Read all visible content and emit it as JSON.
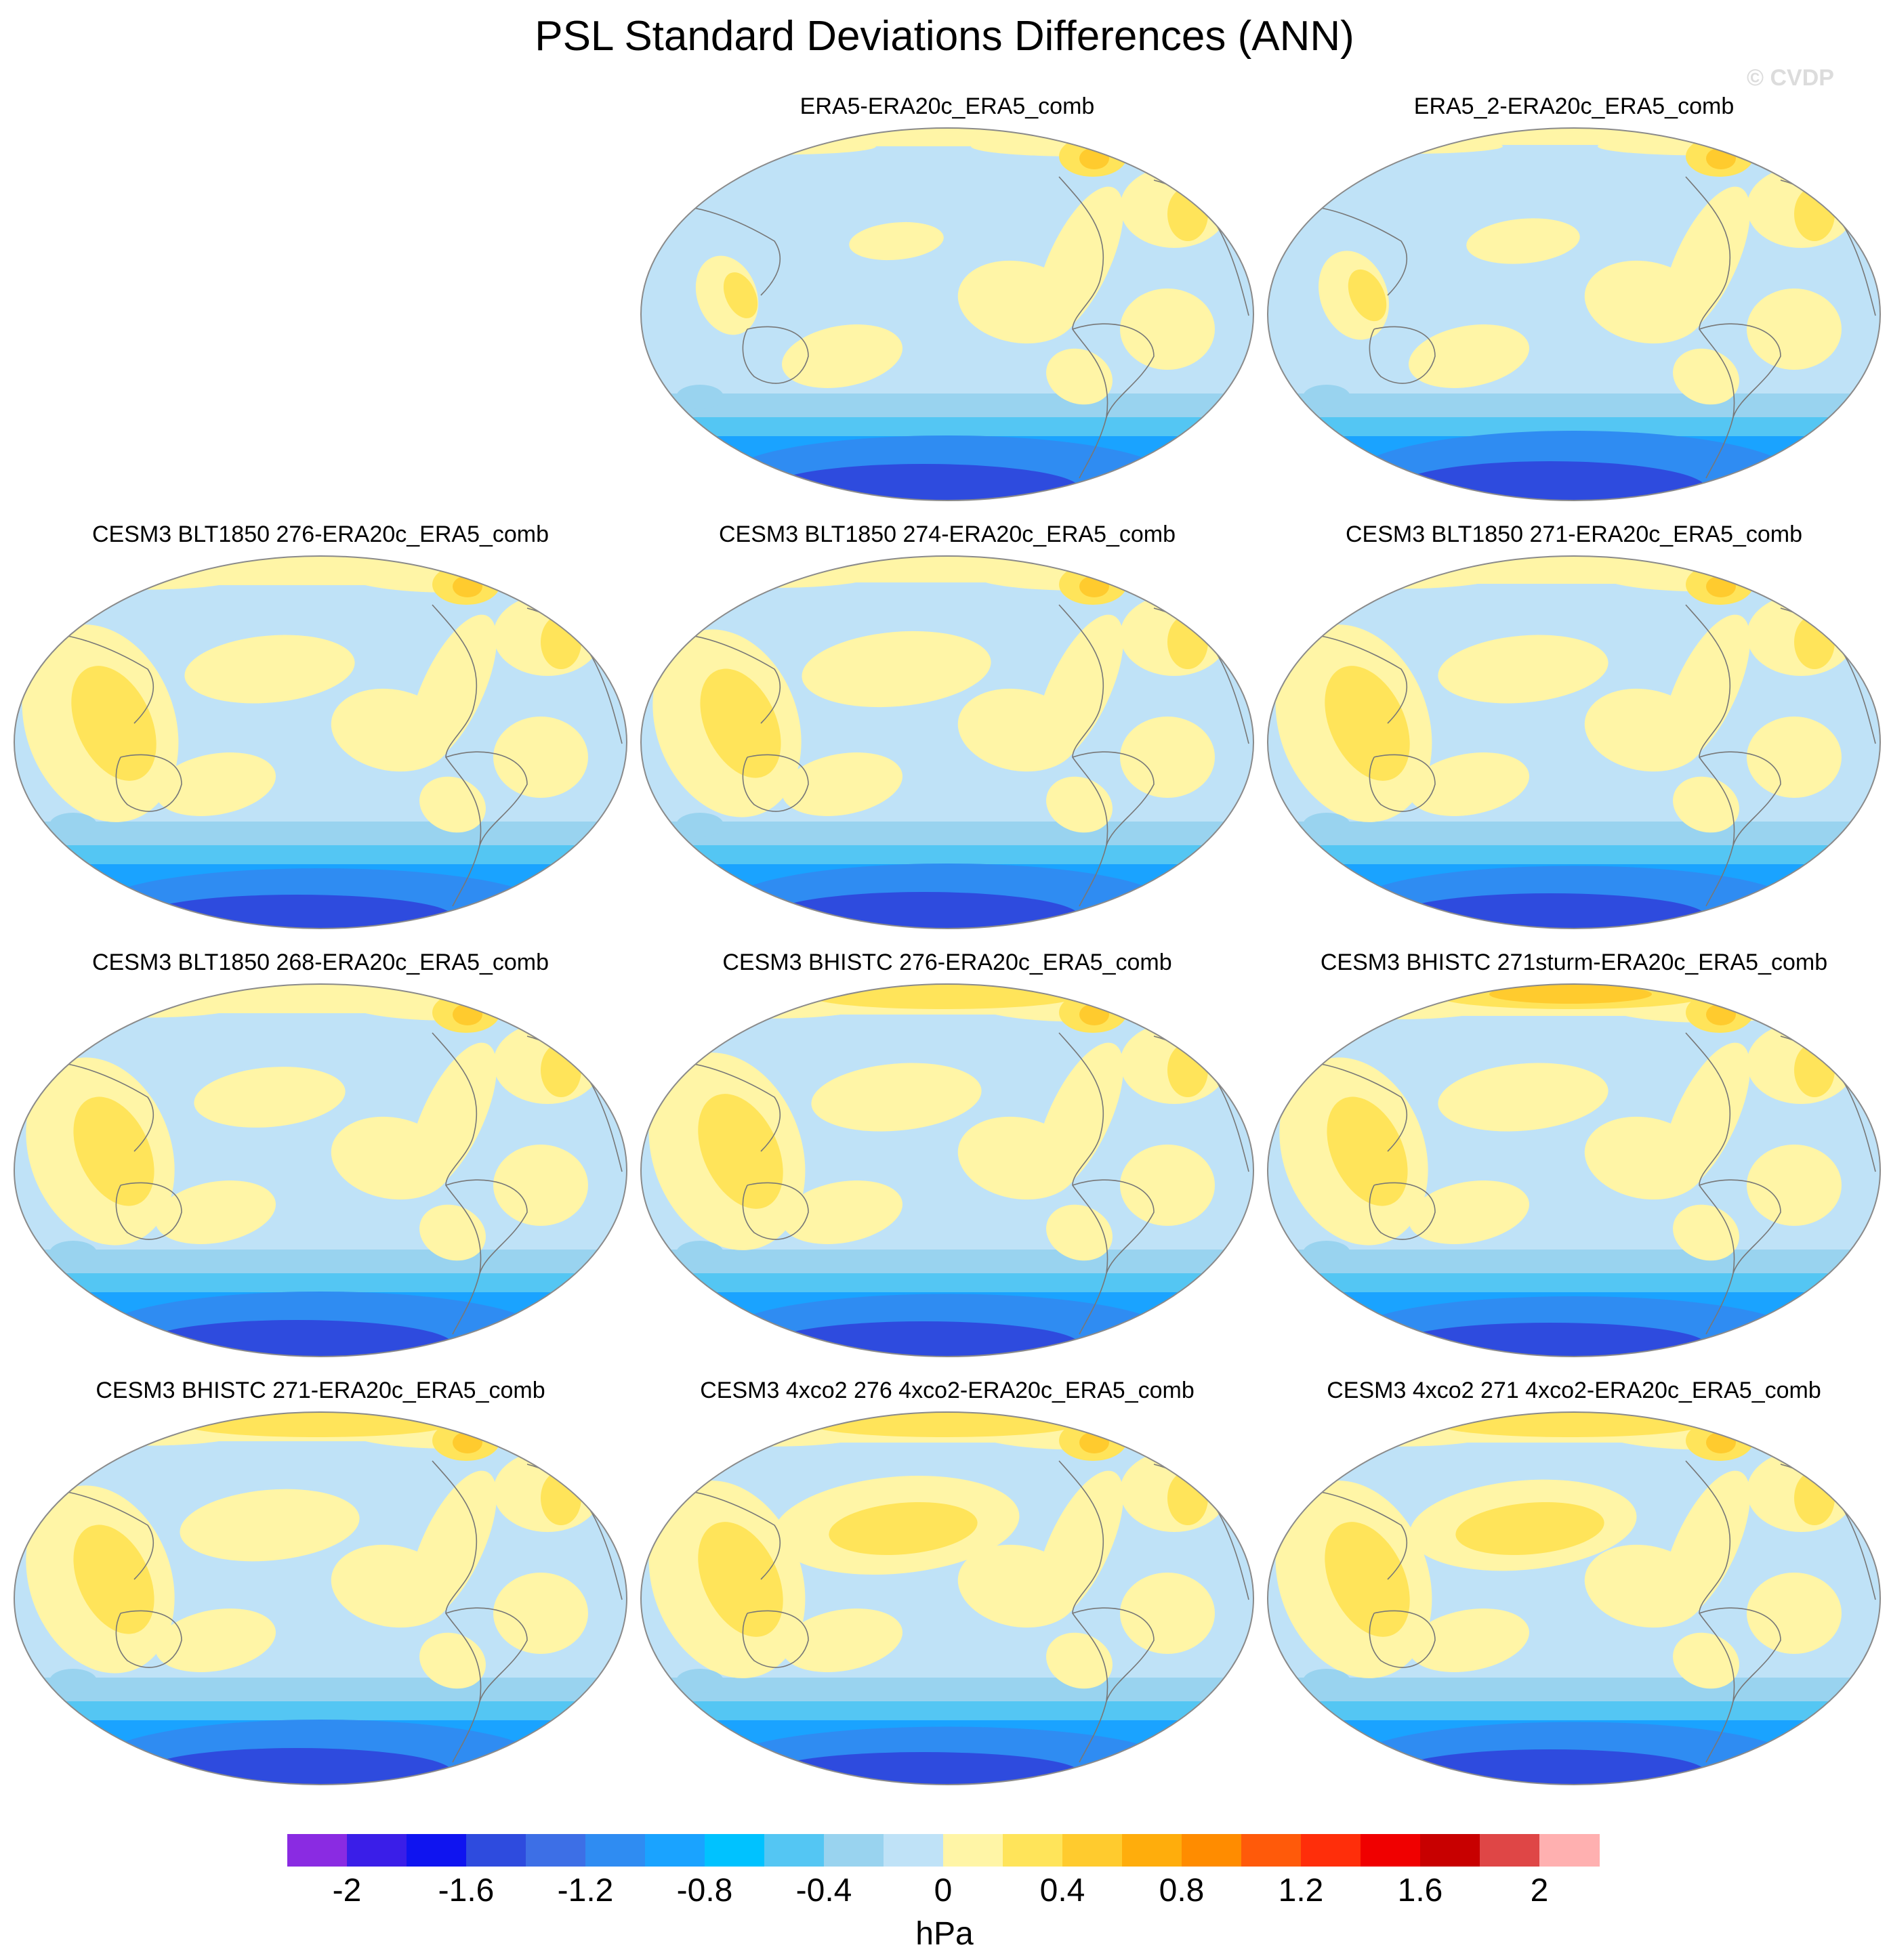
{
  "title": "PSL Standard Deviations Differences (ANN)",
  "watermark": "© CVDP",
  "panels": [
    {
      "title": "ERA5-ERA20c_ERA5_comb",
      "variant": 0
    },
    {
      "title": "ERA5_2-ERA20c_ERA5_comb",
      "variant": 1
    },
    {
      "title": "CESM3 BLT1850 276-ERA20c_ERA5_comb",
      "variant": 2
    },
    {
      "title": "CESM3 BLT1850 274-ERA20c_ERA5_comb",
      "variant": 3
    },
    {
      "title": "CESM3 BLT1850 271-ERA20c_ERA5_comb",
      "variant": 4
    },
    {
      "title": "CESM3 BLT1850 268-ERA20c_ERA5_comb",
      "variant": 5
    },
    {
      "title": "CESM3 BHISTC 276-ERA20c_ERA5_comb",
      "variant": 6
    },
    {
      "title": "CESM3 BHISTC 271sturm-ERA20c_ERA5_comb",
      "variant": 7
    },
    {
      "title": "CESM3 BHISTC 271-ERA20c_ERA5_comb",
      "variant": 8
    },
    {
      "title": "CESM3 4xco2 276 4xco2-ERA20c_ERA5_comb",
      "variant": 9
    },
    {
      "title": "CESM3 4xco2 271 4xco2-ERA20c_ERA5_comb",
      "variant": 10
    }
  ],
  "colorbar": {
    "colors": [
      "#8a2be2",
      "#3a1ee8",
      "#0f14f0",
      "#2e4bde",
      "#3d6fe6",
      "#2f8cf2",
      "#1aa3ff",
      "#00c2ff",
      "#54c6f3",
      "#99d3ef",
      "#bfe2f7",
      "#fff5a6",
      "#ffe45a",
      "#ffcb2e",
      "#ffad0c",
      "#ff8c00",
      "#ff5a0a",
      "#ff2e0a",
      "#f00000",
      "#c80000",
      "#df4646",
      "#ffb0b0"
    ],
    "tick_labels": [
      "-2",
      "-1.6",
      "-1.2",
      "-0.8",
      "-0.4",
      "0",
      "0.4",
      "0.8",
      "1.2",
      "1.6",
      "2"
    ],
    "units": "hPa"
  }
}
